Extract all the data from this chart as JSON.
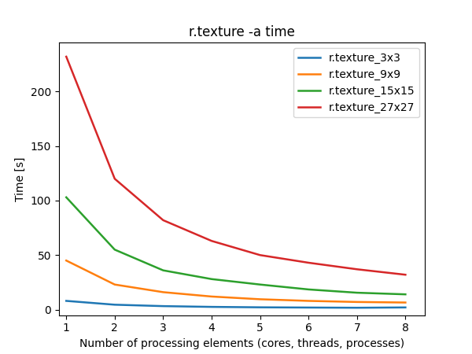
{
  "title": "r.texture -a time",
  "xlabel": "Number of processing elements (cores, threads, processes)",
  "ylabel": "Time [s]",
  "x": [
    1,
    2,
    3,
    4,
    5,
    6,
    7,
    8
  ],
  "series": [
    {
      "label": "r.texture_3x3",
      "color": "#1f77b4",
      "y": [
        8.0,
        4.5,
        3.2,
        2.5,
        2.1,
        1.9,
        1.7,
        2.0
      ]
    },
    {
      "label": "r.texture_9x9",
      "color": "#ff7f0e",
      "y": [
        45.0,
        23.0,
        16.0,
        12.0,
        9.5,
        8.0,
        7.0,
        6.5
      ]
    },
    {
      "label": "r.texture_15x15",
      "color": "#2ca02c",
      "y": [
        103.0,
        55.0,
        36.0,
        28.0,
        23.0,
        18.5,
        15.5,
        14.0
      ]
    },
    {
      "label": "r.texture_27x27",
      "color": "#d62728",
      "y": [
        232.0,
        120.0,
        82.0,
        63.0,
        50.0,
        43.0,
        37.0,
        32.0
      ]
    }
  ],
  "xlim": [
    0.85,
    8.4
  ],
  "ylim": [
    -5,
    245
  ],
  "yticks": [
    0,
    50,
    100,
    150,
    200
  ],
  "xticks": [
    1,
    2,
    3,
    4,
    5,
    6,
    7,
    8
  ],
  "legend_loc": "upper right",
  "figsize": [
    6.0,
    4.5
  ],
  "dpi": 100
}
